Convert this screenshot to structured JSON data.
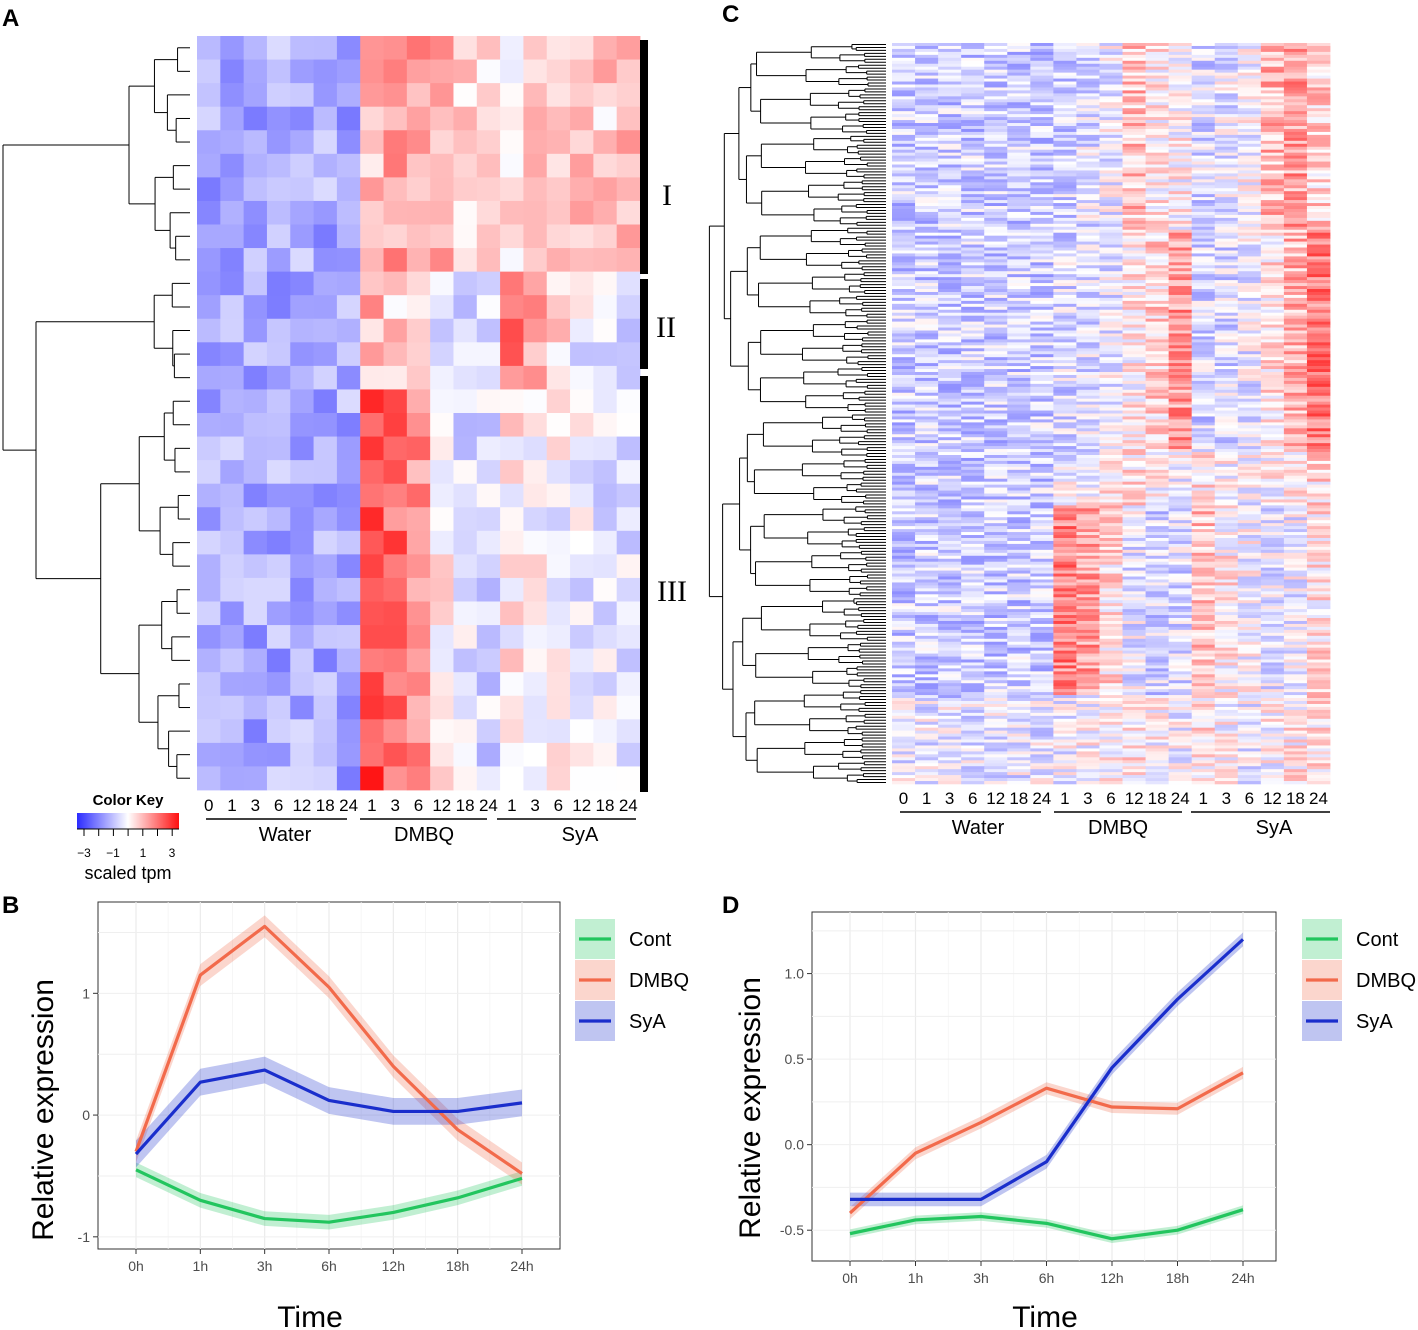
{
  "panel_labels": {
    "a": "A",
    "b": "B",
    "c": "C",
    "d": "D"
  },
  "colors": {
    "low": "#2b2bff",
    "mid": "#ffffff",
    "high": "#ff1010",
    "cont": "#22c55e",
    "dmbq": "#f26a4b",
    "sya": "#1a2ecc"
  },
  "chart_data": [
    {
      "type": "heatmap",
      "panel": "A",
      "columns": [
        "0",
        "1",
        "3",
        "6",
        "12",
        "18",
        "24",
        "1",
        "3",
        "6",
        "12",
        "18",
        "24",
        "1",
        "3",
        "6",
        "12",
        "18",
        "24"
      ],
      "groups": [
        {
          "name": "Water",
          "columns": [
            "0",
            "1",
            "3",
            "6",
            "12",
            "18",
            "24"
          ]
        },
        {
          "name": "DMBQ",
          "columns": [
            "1",
            "3",
            "6",
            "12",
            "18",
            "24"
          ]
        },
        {
          "name": "SyA",
          "columns": [
            "1",
            "3",
            "6",
            "12",
            "18",
            "24"
          ]
        }
      ],
      "clusters": [
        "I",
        "II",
        "III"
      ],
      "rows": 32,
      "color_key": {
        "title": "Color Key",
        "ticks": [
          "−3",
          "−1",
          "1",
          "3"
        ],
        "label": "scaled tpm",
        "range": [
          -3,
          3
        ]
      }
    },
    {
      "type": "heatmap",
      "panel": "C",
      "columns": [
        "0",
        "1",
        "3",
        "6",
        "12",
        "18",
        "24",
        "1",
        "3",
        "6",
        "12",
        "18",
        "24",
        "1",
        "3",
        "6",
        "12",
        "18",
        "24"
      ],
      "groups": [
        {
          "name": "Water",
          "columns": [
            "0",
            "1",
            "3",
            "6",
            "12",
            "18",
            "24"
          ]
        },
        {
          "name": "DMBQ",
          "columns": [
            "1",
            "3",
            "6",
            "12",
            "18",
            "24"
          ]
        },
        {
          "name": "SyA",
          "columns": [
            "1",
            "3",
            "6",
            "12",
            "18",
            "24"
          ]
        }
      ],
      "rows": 250
    },
    {
      "type": "line",
      "panel": "B",
      "x": [
        "0h",
        "1h",
        "3h",
        "6h",
        "12h",
        "18h",
        "24h"
      ],
      "xlabel": "Time",
      "ylabel": "Relative expression",
      "ylim": [
        -1.1,
        1.75
      ],
      "yticks": [
        -1,
        0,
        1
      ],
      "grid": true,
      "legend": "top-right",
      "series": [
        {
          "name": "Cont",
          "values": [
            -0.45,
            -0.7,
            -0.85,
            -0.88,
            -0.8,
            -0.68,
            -0.52
          ],
          "band": 0.06
        },
        {
          "name": "DMBQ",
          "values": [
            -0.3,
            1.15,
            1.55,
            1.05,
            0.4,
            -0.12,
            -0.48
          ],
          "band": 0.09
        },
        {
          "name": "SyA",
          "values": [
            -0.32,
            0.27,
            0.37,
            0.12,
            0.03,
            0.03,
            0.1
          ],
          "band": 0.11
        }
      ]
    },
    {
      "type": "line",
      "panel": "D",
      "x": [
        "0h",
        "1h",
        "3h",
        "6h",
        "12h",
        "18h",
        "24h"
      ],
      "xlabel": "Time",
      "ylabel": "Relative expression",
      "ylim": [
        -0.68,
        1.36
      ],
      "yticks": [
        -0.5,
        0.0,
        0.5,
        1.0
      ],
      "ytick_labels": [
        "-0.5",
        "0.0",
        "0.5",
        "1.0"
      ],
      "grid": true,
      "legend": "top-right",
      "series": [
        {
          "name": "Cont",
          "values": [
            -0.52,
            -0.44,
            -0.42,
            -0.46,
            -0.55,
            -0.5,
            -0.38
          ],
          "band": 0.025
        },
        {
          "name": "DMBQ",
          "values": [
            -0.4,
            -0.05,
            0.13,
            0.33,
            0.22,
            0.21,
            0.42
          ],
          "band": 0.035
        },
        {
          "name": "SyA",
          "values": [
            -0.32,
            -0.32,
            -0.32,
            -0.1,
            0.45,
            0.85,
            1.2
          ],
          "band": 0.04
        }
      ]
    }
  ]
}
